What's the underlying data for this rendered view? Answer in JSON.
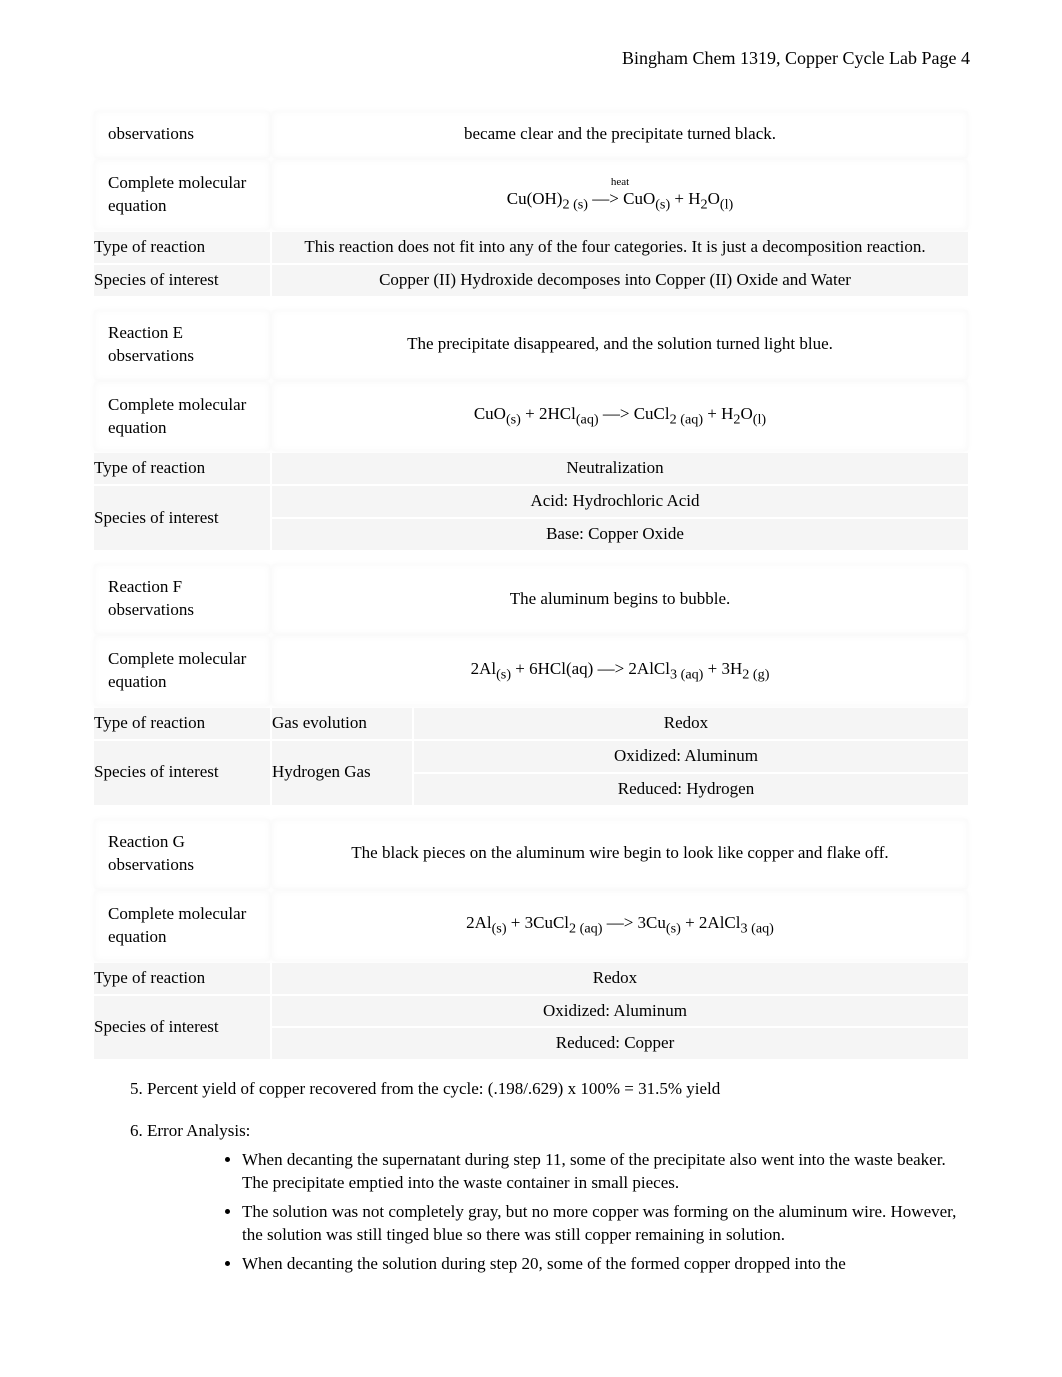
{
  "header": "Bingham Chem 1319, Copper Cycle Lab Page 4",
  "rxnD": {
    "obs_label": "observations",
    "obs": "became clear and the precipitate turned black.",
    "eq_label": "Complete molecular equation",
    "heat": "heat",
    "eq": "Cu(OH)₂₍ₛ₎ —> CuO₍ₛ₎ + H₂O₍ₗ₎",
    "type_label": "Type of reaction",
    "type": "This reaction does not fit into any of the four categories. It is just a decomposition reaction.",
    "species_label": "Species of interest",
    "species": "Copper (II) Hydroxide decomposes into Copper (II) Oxide and Water"
  },
  "rxnE": {
    "obs_label": "Reaction E observations",
    "obs": "The precipitate disappeared, and the solution turned light blue.",
    "eq_label": "Complete molecular equation",
    "eq": "CuO₍ₛ₎ + 2HCl₍ₐq₎ —> CuCl₂₍ₐq₎ + H₂O₍ₗ₎",
    "type_label": "Type of reaction",
    "type": "Neutralization",
    "species_label": "Species of interest",
    "species1": "Acid: Hydrochloric Acid",
    "species2": "Base: Copper Oxide"
  },
  "rxnF": {
    "obs_label": "Reaction F observations",
    "obs": "The aluminum begins to bubble.",
    "eq_label": "Complete molecular equation",
    "eq": "2Al₍ₛ₎ + 6HCl(aq) —> 2AlCl₃₍ₐq₎ + 3H₂₍ g₎",
    "type_label": "Type of reaction",
    "type_l": "Gas evolution",
    "type_r": "Redox",
    "species_label": "Species of interest",
    "species_l": "Hydrogen Gas",
    "species_r1": "Oxidized: Aluminum",
    "species_r2": "Reduced: Hydrogen"
  },
  "rxnG": {
    "obs_label": "Reaction G observations",
    "obs": "The black pieces on the aluminum wire begin to look like copper and flake off.",
    "eq_label": "Complete molecular equation",
    "eq": "2Al₍ₛ₎ + 3CuCl₂₍ₐq₎ —> 3Cu₍ₛ₎ + 2AlCl₃₍ₐq₎",
    "type_label": "Type of reaction",
    "type": "Redox",
    "species_label": "Species of interest",
    "species1": "Oxidized: Aluminum",
    "species2": "Reduced: Copper"
  },
  "q5": "5. Percent yield of copper recovered from the cycle: (.198/.629) x 100% = 31.5% yield",
  "q6_heading": "6. Error Analysis:",
  "q6_bullets": [
    "When decanting the supernatant during step 11, some of the precipitate also went into the waste beaker. The precipitate emptied into the waste container in small pieces.",
    "The solution was not completely gray, but no more copper was forming on the aluminum wire. However, the solution was still tinged blue so there was still copper remaining in solution.",
    "When decanting the solution during step 20, some of the formed copper dropped into the"
  ]
}
